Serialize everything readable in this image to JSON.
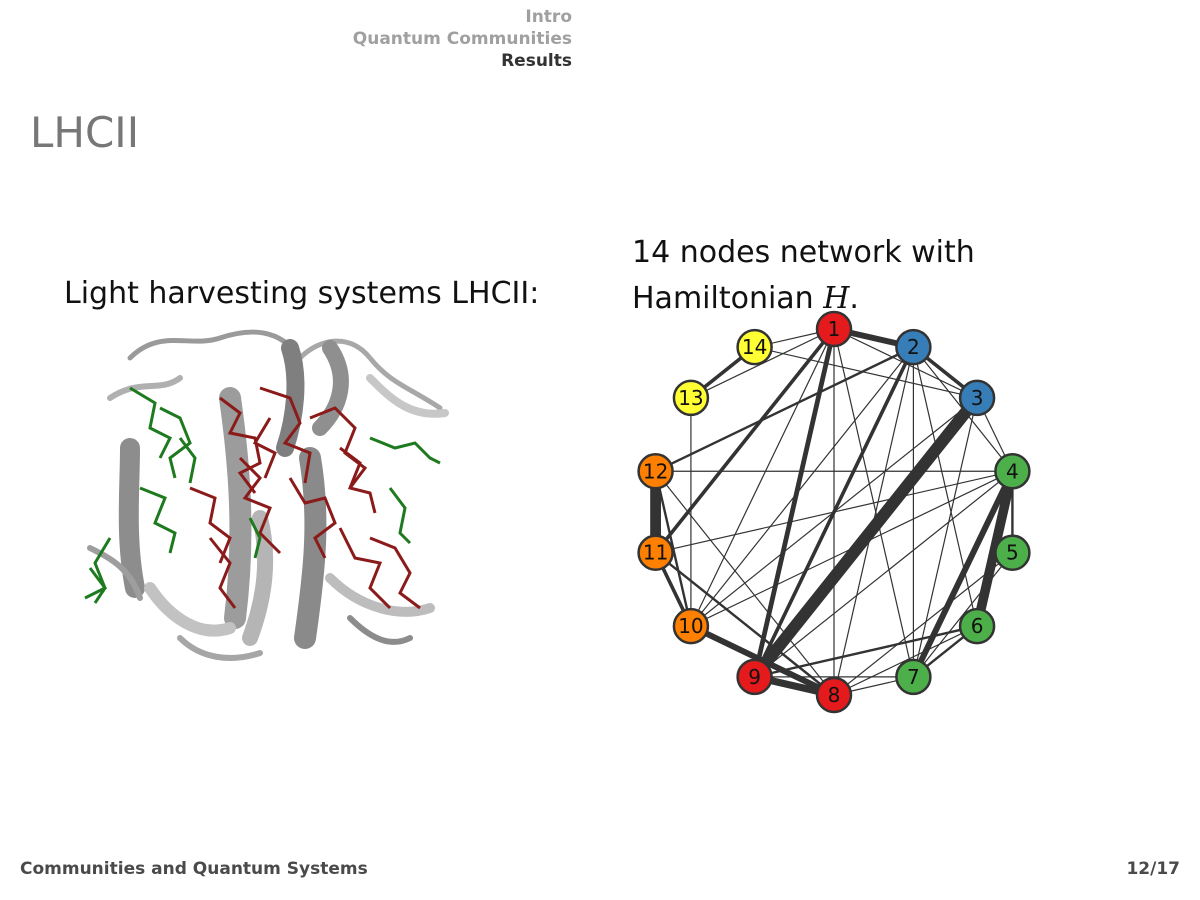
{
  "nav": {
    "items": [
      "Intro",
      "Quantum Communities",
      "Results"
    ],
    "active": 2
  },
  "frame_title": "LHCII",
  "left_caption": "Light harvesting systems LHCII:",
  "right_caption": {
    "line1": "14 nodes network with",
    "line2_prefix": "Hamiltonian ",
    "math": "H",
    "line2_suffix": "."
  },
  "colors": {
    "red": "#e41a1c",
    "blue": "#377eb8",
    "green": "#4daf4a",
    "orange": "#ff7f00",
    "yellow": "#ffff33",
    "helix": "#c8c8c8",
    "chl_red": "#8b1a1a",
    "chl_green": "#1e7a1e"
  },
  "network": {
    "nodes": [
      {
        "id": "1",
        "color": "red"
      },
      {
        "id": "2",
        "color": "blue"
      },
      {
        "id": "3",
        "color": "blue"
      },
      {
        "id": "4",
        "color": "green"
      },
      {
        "id": "5",
        "color": "green"
      },
      {
        "id": "6",
        "color": "green"
      },
      {
        "id": "7",
        "color": "green"
      },
      {
        "id": "8",
        "color": "red"
      },
      {
        "id": "9",
        "color": "red"
      },
      {
        "id": "10",
        "color": "orange"
      },
      {
        "id": "11",
        "color": "orange"
      },
      {
        "id": "12",
        "color": "orange"
      },
      {
        "id": "13",
        "color": "yellow"
      },
      {
        "id": "14",
        "color": "yellow"
      }
    ],
    "edges": [
      {
        "s": "1",
        "t": "2",
        "w": 5
      },
      {
        "s": "2",
        "t": "3",
        "w": 3
      },
      {
        "s": "3",
        "t": "9",
        "w": 10
      },
      {
        "s": "4",
        "t": "6",
        "w": 8
      },
      {
        "s": "4",
        "t": "7",
        "w": 5
      },
      {
        "s": "8",
        "t": "9",
        "w": 6
      },
      {
        "s": "8",
        "t": "10",
        "w": 5
      },
      {
        "s": "11",
        "t": "12",
        "w": 9
      },
      {
        "s": "13",
        "t": "14",
        "w": 3
      },
      {
        "s": "1",
        "t": "9",
        "w": 4
      },
      {
        "s": "2",
        "t": "9",
        "w": 3
      },
      {
        "s": "1",
        "t": "11",
        "w": 3
      },
      {
        "s": "2",
        "t": "12",
        "w": 2
      },
      {
        "s": "10",
        "t": "11",
        "w": 3
      },
      {
        "s": "6",
        "t": "7",
        "w": 2
      },
      {
        "s": "4",
        "t": "5",
        "w": 2
      },
      {
        "s": "11",
        "t": "8",
        "w": 2
      },
      {
        "s": "12",
        "t": "10",
        "w": 2
      },
      {
        "s": "6",
        "t": "9",
        "w": 2
      },
      {
        "s": "7",
        "t": "8",
        "w": 1
      },
      {
        "s": "6",
        "t": "8",
        "w": 1
      },
      {
        "s": "1",
        "t": "3",
        "w": 1
      },
      {
        "s": "1",
        "t": "14",
        "w": 1
      },
      {
        "s": "14",
        "t": "3",
        "w": 1
      },
      {
        "s": "1",
        "t": "10",
        "w": 1
      },
      {
        "s": "1",
        "t": "8",
        "w": 1
      },
      {
        "s": "1",
        "t": "7",
        "w": 1
      },
      {
        "s": "2",
        "t": "7",
        "w": 1
      },
      {
        "s": "2",
        "t": "6",
        "w": 1
      },
      {
        "s": "2",
        "t": "8",
        "w": 1
      },
      {
        "s": "2",
        "t": "10",
        "w": 1
      },
      {
        "s": "2",
        "t": "4",
        "w": 1
      },
      {
        "s": "3",
        "t": "4",
        "w": 1
      },
      {
        "s": "3",
        "t": "10",
        "w": 1
      },
      {
        "s": "3",
        "t": "7",
        "w": 1
      },
      {
        "s": "4",
        "t": "12",
        "w": 1
      },
      {
        "s": "4",
        "t": "11",
        "w": 1
      },
      {
        "s": "4",
        "t": "9",
        "w": 1
      },
      {
        "s": "4",
        "t": "10",
        "w": 1
      },
      {
        "s": "5",
        "t": "7",
        "w": 1
      },
      {
        "s": "5",
        "t": "8",
        "w": 1
      },
      {
        "s": "13",
        "t": "10",
        "w": 1
      },
      {
        "s": "12",
        "t": "8",
        "w": 1
      },
      {
        "s": "7",
        "t": "9",
        "w": 1
      },
      {
        "s": "1",
        "t": "13",
        "w": 1
      }
    ]
  },
  "footer": {
    "title": "Communities and Quantum Systems",
    "page": "12/17"
  }
}
